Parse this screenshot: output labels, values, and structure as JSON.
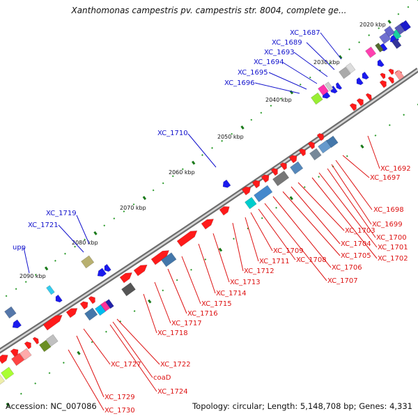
{
  "title": "Xanthomonas campestris pv. campestris str. 8004, complete ge...",
  "footer": {
    "accession": "Accession: NC_007086",
    "summary": "Topology: circular; Length: 5,148,708 bp; Genes: 4,331"
  },
  "colors": {
    "forward_gene": "#ff1a1a",
    "reverse_gene": "#1a1aee",
    "label_forward": "#dd1111",
    "label_reverse": "#1111cc",
    "backbone": "#888888",
    "tick": "#1a8a1a"
  },
  "ticks": [
    "2020 kbp",
    "2030 kbp",
    "2040 kbp",
    "2050 kbp",
    "2060 kbp",
    "2070 kbp",
    "2080 kbp",
    "2090 kbp"
  ],
  "labels_reverse": [
    "XC_1687",
    "XC_1689",
    "XC_1693",
    "XC_1694",
    "XC_1695",
    "XC_1696",
    "XC_1710",
    "XC_1719",
    "XC_1721",
    "upp"
  ],
  "labels_forward": [
    "XC_1692",
    "XC_1697",
    "XC_1698",
    "XC_1699",
    "XC_1700",
    "XC_1701",
    "XC_1702",
    "XC_1703",
    "XC_1704",
    "XC_1705",
    "XC_1706",
    "XC_1707",
    "XC_1708",
    "XC_1709",
    "XC_1711",
    "XC_1712",
    "XC_1713",
    "XC_1714",
    "XC_1715",
    "XC_1716",
    "XC_1717",
    "XC_1718",
    "XC_1722",
    "coaD",
    "XC_1724",
    "XC_1727",
    "XC_1729",
    "XC_1730"
  ]
}
